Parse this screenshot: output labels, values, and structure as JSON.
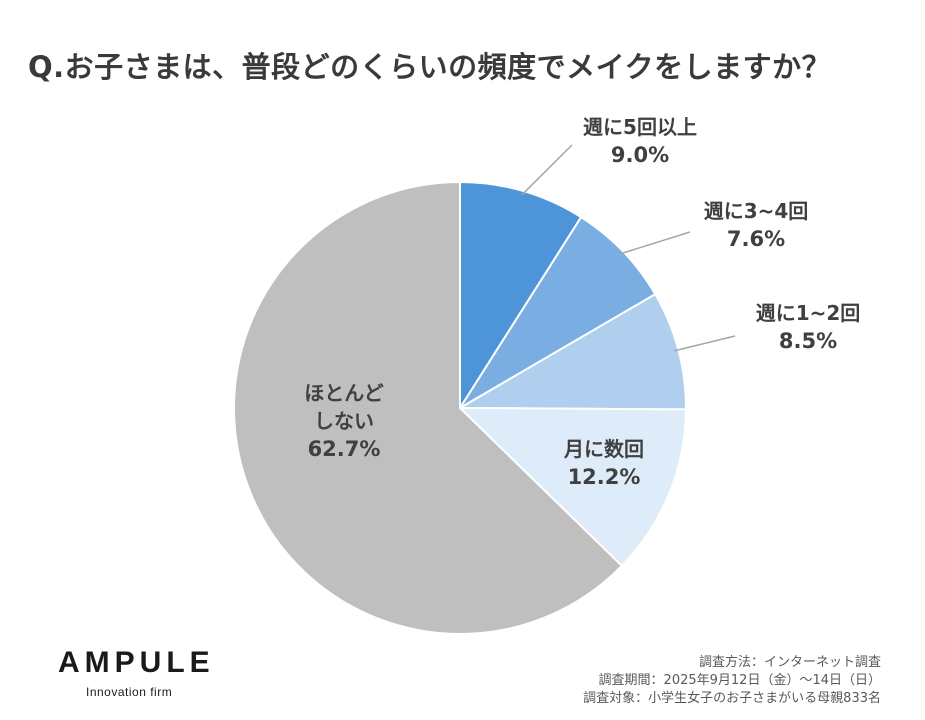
{
  "title": "Q.お子さまは、普段どのくらいの頻度でメイクをしますか？",
  "chart_data": {
    "type": "pie",
    "title": "Q.お子さまは、普段どのくらいの頻度でメイクをしますか？",
    "slices": [
      {
        "label": "週に5回以上",
        "value": 9.0,
        "value_label": "9.0%",
        "color": "#4d94d9"
      },
      {
        "label": "週に3~4回",
        "value": 7.6,
        "value_label": "7.6%",
        "color": "#7aaee3"
      },
      {
        "label": "週に1~2回",
        "value": 8.5,
        "value_label": "8.5%",
        "color": "#b0cfee"
      },
      {
        "label": "月に数回",
        "value": 12.2,
        "value_label": "12.2%",
        "color": "#deebf8"
      },
      {
        "label": "ほとんどしない",
        "label_lines": [
          "ほとんど",
          "しない"
        ],
        "value": 62.7,
        "value_label": "62.7%",
        "color": "#bfbfbf"
      }
    ],
    "start_direction": "top",
    "direction": "clockwise",
    "legend": "none"
  },
  "logo": {
    "main": "AMPULE",
    "sub": "Innovation firm"
  },
  "footnotes": [
    "調査方法：インターネット調査",
    "調査期間：2025年9月12日（金）～14日（日）",
    "調査対象：小学生女子のお子さまがいる母親833名"
  ]
}
